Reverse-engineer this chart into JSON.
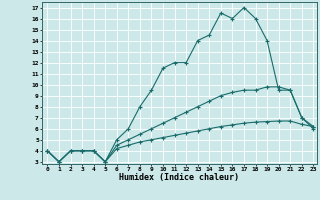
{
  "xlabel": "Humidex (Indice chaleur)",
  "xlim": [
    0,
    23
  ],
  "ylim": [
    3,
    17
  ],
  "xticks": [
    0,
    1,
    2,
    3,
    4,
    5,
    6,
    7,
    8,
    9,
    10,
    11,
    12,
    13,
    14,
    15,
    16,
    17,
    18,
    19,
    20,
    21,
    22,
    23
  ],
  "yticks": [
    3,
    4,
    5,
    6,
    7,
    8,
    9,
    10,
    11,
    12,
    13,
    14,
    15,
    16,
    17
  ],
  "bg_color": "#cce8e8",
  "line_color": "#1a6b6b",
  "grid_color": "#ffffff",
  "lines": [
    {
      "x": [
        0,
        1,
        2,
        3,
        4,
        5,
        6,
        7,
        8,
        9,
        10,
        11,
        12,
        13,
        14,
        15,
        16,
        17,
        18,
        19,
        20,
        21,
        22,
        23
      ],
      "y": [
        4,
        3,
        4,
        4,
        4,
        3,
        5,
        6,
        8,
        9.5,
        11.5,
        12,
        12,
        14,
        14.5,
        16.5,
        16,
        17,
        16,
        14,
        9.5,
        9.5,
        7,
        6
      ]
    },
    {
      "x": [
        0,
        1,
        2,
        3,
        4,
        5,
        6,
        7,
        8,
        9,
        10,
        11,
        12,
        13,
        14,
        15,
        16,
        17,
        18,
        19,
        20,
        21,
        22,
        23
      ],
      "y": [
        4,
        3,
        4,
        4,
        4,
        3,
        4.5,
        5,
        5.5,
        6,
        6.5,
        7,
        7.5,
        8,
        8.5,
        9,
        9.3,
        9.5,
        9.5,
        9.8,
        9.8,
        9.5,
        7,
        6.2
      ]
    },
    {
      "x": [
        0,
        1,
        2,
        3,
        4,
        5,
        6,
        7,
        8,
        9,
        10,
        11,
        12,
        13,
        14,
        15,
        16,
        17,
        18,
        19,
        20,
        21,
        22,
        23
      ],
      "y": [
        4,
        3,
        4,
        4,
        4,
        3,
        4.2,
        4.5,
        4.8,
        5.0,
        5.2,
        5.4,
        5.6,
        5.8,
        6.0,
        6.2,
        6.35,
        6.5,
        6.6,
        6.65,
        6.7,
        6.7,
        6.4,
        6.2
      ]
    }
  ]
}
